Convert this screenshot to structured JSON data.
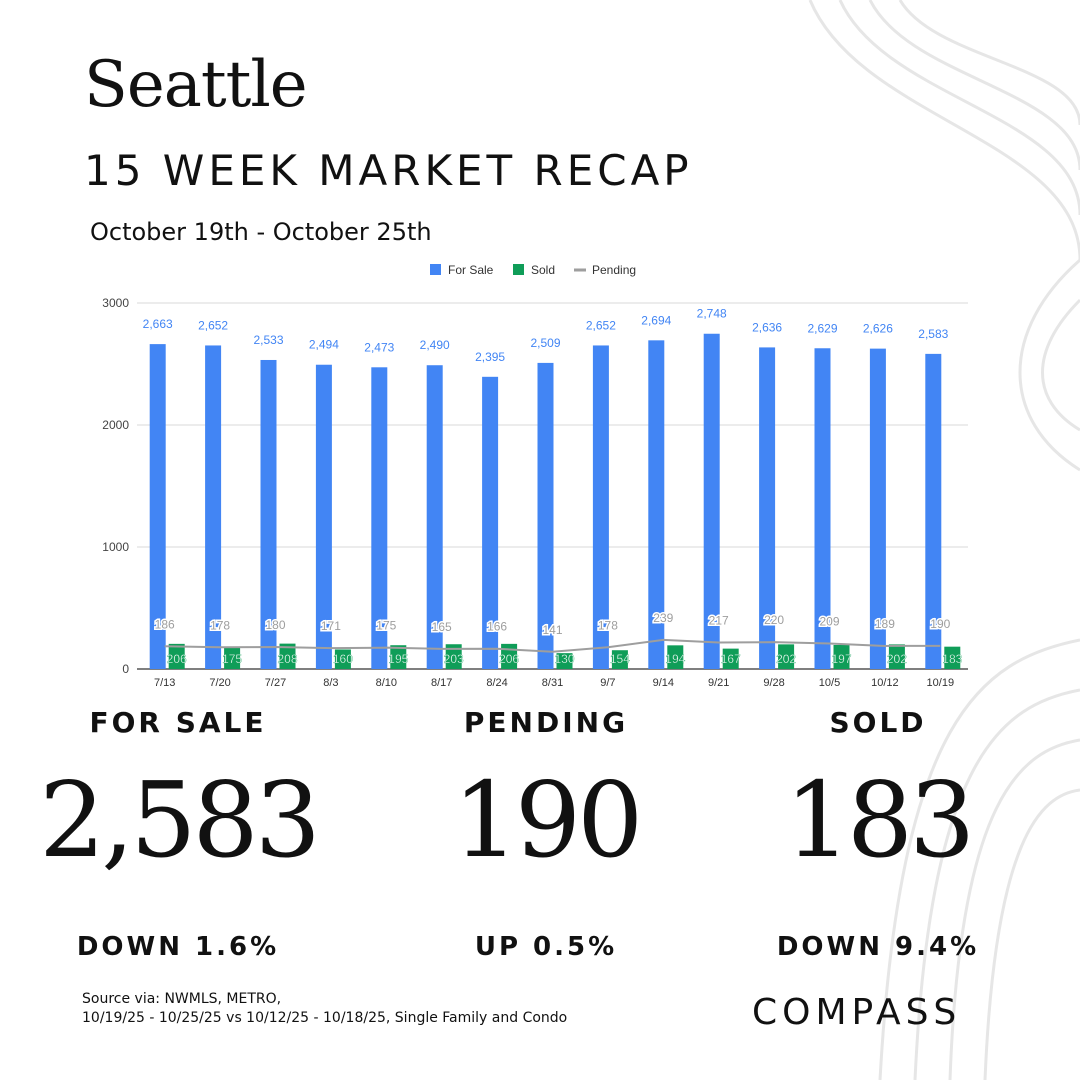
{
  "header": {
    "city": "Seattle",
    "title": "15 WEEK MARKET RECAP",
    "date_range": "October 19th - October 25th"
  },
  "chart_data": {
    "type": "bar",
    "title": "",
    "xlabel": "",
    "ylabel": "",
    "categories": [
      "7/13",
      "7/20",
      "7/27",
      "8/3",
      "8/10",
      "8/17",
      "8/24",
      "8/31",
      "9/7",
      "9/14",
      "9/21",
      "9/28",
      "10/5",
      "10/12",
      "10/19"
    ],
    "y_ticks": [
      "0",
      "1000",
      "2000",
      "3000"
    ],
    "ylim": [
      0,
      3000
    ],
    "grid": true,
    "legend_position": "top",
    "series": [
      {
        "name": "For Sale",
        "type": "bar",
        "color": "#4285f4",
        "label_color": "#4285f4",
        "values": [
          2663,
          2652,
          2533,
          2494,
          2473,
          2490,
          2395,
          2509,
          2652,
          2694,
          2748,
          2636,
          2629,
          2626,
          2583
        ],
        "labels": [
          "2,663",
          "2,652",
          "2,533",
          "2,494",
          "2,473",
          "2,490",
          "2,395",
          "2,509",
          "2,652",
          "2,694",
          "2,748",
          "2,636",
          "2,629",
          "2,626",
          "2,583"
        ]
      },
      {
        "name": "Sold",
        "type": "bar",
        "color": "#0f9d58",
        "label_color": "#ffffff",
        "values": [
          206,
          175,
          208,
          160,
          195,
          203,
          206,
          130,
          154,
          194,
          167,
          202,
          197,
          202,
          183
        ],
        "labels": [
          "206",
          "175",
          "208",
          "160",
          "195",
          "203",
          "206",
          "130",
          "154",
          "194",
          "167",
          "202",
          "197",
          "202",
          "183"
        ]
      },
      {
        "name": "Pending",
        "type": "line",
        "color": "#9e9e9e",
        "label_color": "#9e9e9e",
        "values": [
          186,
          178,
          180,
          171,
          175,
          165,
          166,
          141,
          178,
          239,
          217,
          220,
          209,
          189,
          190
        ],
        "labels": [
          "186",
          "178",
          "180",
          "171",
          "175",
          "165",
          "166",
          "141",
          "178",
          "239",
          "217",
          "220",
          "209",
          "189",
          "190"
        ]
      }
    ]
  },
  "stats": {
    "for_sale": {
      "label": "FOR SALE",
      "value": "2,583",
      "change": "DOWN 1.6%"
    },
    "pending": {
      "label": "PENDING",
      "value": "190",
      "change": "UP 0.5%"
    },
    "sold": {
      "label": "SOLD",
      "value": "183",
      "change": "DOWN 9.4%"
    }
  },
  "footer": {
    "source_line1": "Source via: NWMLS, METRO,",
    "source_line2": "10/19/25 - 10/25/25 vs 10/12/25 - 10/18/25, Single Family and Condo",
    "brand": "COMPASS"
  }
}
